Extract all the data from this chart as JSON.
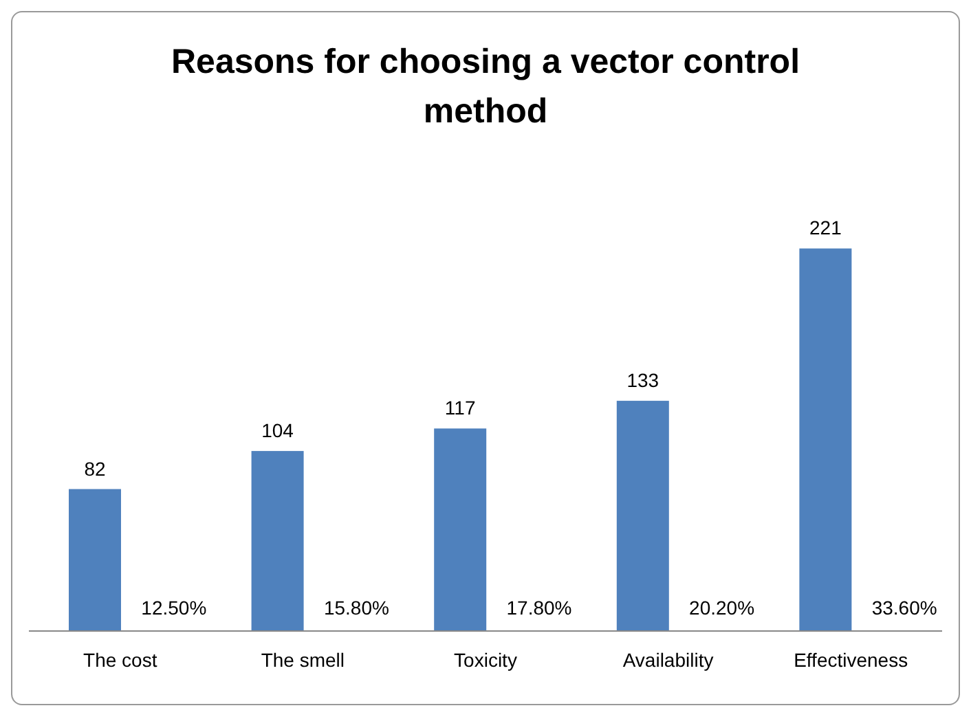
{
  "chart_data": {
    "type": "bar",
    "title": "Reasons for choosing a vector control method",
    "categories": [
      "The cost",
      "The smell",
      "Toxicity",
      "Availability",
      "Effectiveness"
    ],
    "series": [
      {
        "color": "#4f81bd",
        "values": [
          82,
          104,
          117,
          133,
          221
        ]
      }
    ],
    "data_labels": true,
    "annotations": [
      {
        "text": "12.50%",
        "x": "The cost",
        "y": 0
      },
      {
        "text": "15.80%",
        "x": "The smell",
        "y": 0
      },
      {
        "text": "17.80%",
        "x": "Toxicity",
        "y": 0
      },
      {
        "text": "20.20%",
        "x": "Availability",
        "y": 0
      },
      {
        "text": "33.60%",
        "x": "Effectiveness",
        "y": 0
      }
    ]
  }
}
